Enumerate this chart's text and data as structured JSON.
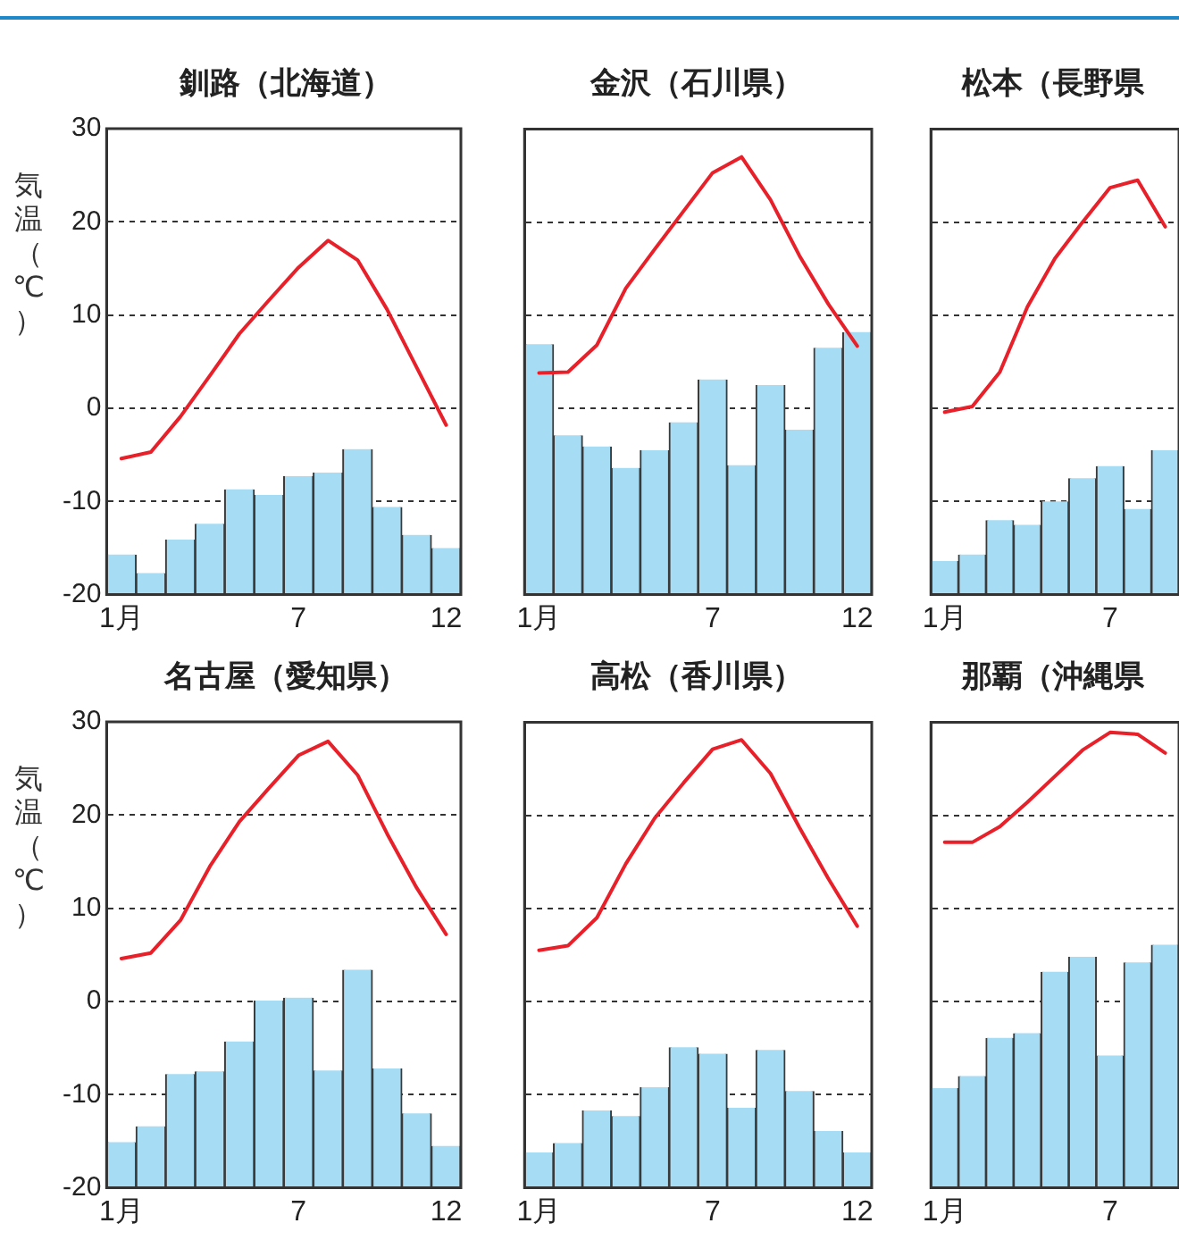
{
  "chart_data": [
    {
      "type": "bar",
      "title": "釧路（北海道）",
      "ylabel": "気温（℃）",
      "categories": [
        "1月",
        null,
        null,
        null,
        null,
        null,
        "7",
        null,
        null,
        null,
        null,
        "12"
      ],
      "ylim": [
        -20,
        30
      ],
      "yticks": [
        -20,
        -10,
        0,
        10,
        20,
        30
      ],
      "grid": "y",
      "series": [
        {
          "type": "bar",
          "color": "#a6dcf4",
          "base": [
            -20,
            -20,
            -20,
            -20,
            -20,
            -20,
            -20,
            -20,
            -20,
            -20,
            -20,
            -20
          ],
          "values": [
            4.3,
            2.3,
            5.9,
            7.6,
            11.3,
            10.7,
            12.7,
            13.1,
            15.6,
            9.4,
            6.4,
            5.0
          ]
        },
        {
          "type": "line",
          "color": "#e8202a",
          "values": [
            -5.4,
            -4.7,
            -0.9,
            3.5,
            8.0,
            11.6,
            15.1,
            18.0,
            15.9,
            10.6,
            4.4,
            -1.8
          ]
        }
      ]
    },
    {
      "type": "bar",
      "title": "金沢（石川県）",
      "categories": [
        "1月",
        null,
        null,
        null,
        null,
        null,
        "7",
        null,
        null,
        null,
        null,
        "12"
      ],
      "ylim": [
        -20,
        30
      ],
      "yticks": [
        -20,
        -10,
        0,
        10,
        20,
        30
      ],
      "grid": "y",
      "tick_labels": "x",
      "series": [
        {
          "type": "bar",
          "color": "#a6dcf4",
          "base": [
            -20,
            -20,
            -20,
            -20,
            -20,
            -20,
            -20,
            -20,
            -20,
            -20,
            -20,
            -20
          ],
          "values": [
            26.9,
            17.1,
            15.9,
            13.6,
            15.5,
            18.5,
            23.1,
            13.9,
            22.5,
            17.7,
            26.5,
            28.2
          ]
        },
        {
          "type": "line",
          "color": "#e8202a",
          "values": [
            3.8,
            3.9,
            6.8,
            12.9,
            17.1,
            21.2,
            25.3,
            27.0,
            22.4,
            16.4,
            11.2,
            6.7
          ]
        }
      ]
    },
    {
      "type": "bar",
      "title": "松本（長野県",
      "categories": [
        "1月",
        null,
        null,
        null,
        null,
        null,
        "7",
        null,
        null
      ],
      "ylim": [
        -20,
        30
      ],
      "yticks": [
        -20,
        -10,
        0,
        10,
        20,
        30
      ],
      "grid": "y",
      "tick_labels": "x",
      "series": [
        {
          "type": "bar",
          "color": "#a6dcf4",
          "base": [
            -20,
            -20,
            -20,
            -20,
            -20,
            -20,
            -20,
            -20,
            -20
          ],
          "values": [
            3.6,
            4.3,
            8.0,
            7.5,
            10.0,
            12.5,
            13.8,
            9.2,
            15.5
          ]
        },
        {
          "type": "line",
          "color": "#e8202a",
          "values": [
            -0.4,
            0.2,
            3.9,
            10.9,
            16.1,
            20.0,
            23.7,
            24.5,
            19.5
          ]
        }
      ]
    },
    {
      "type": "bar",
      "title": "名古屋（愛知県）",
      "ylabel": "気温（℃）",
      "categories": [
        "1月",
        null,
        null,
        null,
        null,
        null,
        "7",
        null,
        null,
        null,
        null,
        "12"
      ],
      "ylim": [
        -20,
        30
      ],
      "yticks": [
        -20,
        -10,
        0,
        10,
        20,
        30
      ],
      "grid": "y",
      "series": [
        {
          "type": "bar",
          "color": "#a6dcf4",
          "base": [
            -20,
            -20,
            -20,
            -20,
            -20,
            -20,
            -20,
            -20,
            -20,
            -20,
            -20,
            -20
          ],
          "values": [
            4.9,
            6.6,
            12.2,
            12.5,
            15.7,
            20.1,
            20.4,
            12.6,
            23.4,
            12.8,
            8.0,
            4.5
          ]
        },
        {
          "type": "line",
          "color": "#e8202a",
          "values": [
            4.6,
            5.2,
            8.7,
            14.5,
            19.3,
            22.9,
            26.4,
            27.9,
            24.3,
            18.0,
            12.2,
            7.2
          ]
        }
      ]
    },
    {
      "type": "bar",
      "title": "高松（香川県）",
      "categories": [
        "1月",
        null,
        null,
        null,
        null,
        null,
        "7",
        null,
        null,
        null,
        null,
        "12"
      ],
      "ylim": [
        -20,
        30
      ],
      "yticks": [
        -20,
        -10,
        0,
        10,
        20,
        30
      ],
      "grid": "y",
      "tick_labels": "x",
      "series": [
        {
          "type": "bar",
          "color": "#a6dcf4",
          "base": [
            -20,
            -20,
            -20,
            -20,
            -20,
            -20,
            -20,
            -20,
            -20,
            -20,
            -20,
            -20
          ],
          "values": [
            3.8,
            4.8,
            8.3,
            7.7,
            10.8,
            15.1,
            14.4,
            8.6,
            14.8,
            10.4,
            6.1,
            3.8
          ]
        },
        {
          "type": "line",
          "color": "#e8202a",
          "values": [
            5.5,
            6.0,
            9.0,
            14.8,
            19.7,
            23.5,
            27.1,
            28.1,
            24.5,
            18.7,
            13.2,
            8.1
          ]
        }
      ]
    },
    {
      "type": "bar",
      "title": "那覇（沖縄県",
      "categories": [
        "1月",
        null,
        null,
        null,
        null,
        null,
        "7",
        null,
        null
      ],
      "ylim": [
        -20,
        30
      ],
      "yticks": [
        -20,
        -10,
        0,
        10,
        20,
        30
      ],
      "grid": "y",
      "tick_labels": "x",
      "series": [
        {
          "type": "bar",
          "color": "#a6dcf4",
          "base": [
            -20,
            -20,
            -20,
            -20,
            -20,
            -20,
            -20,
            -20,
            -20
          ],
          "values": [
            10.7,
            12.0,
            16.1,
            16.6,
            23.2,
            24.8,
            14.2,
            24.2,
            26.1
          ]
        },
        {
          "type": "line",
          "color": "#e8202a",
          "values": [
            17.1,
            17.1,
            18.8,
            21.4,
            24.2,
            27.0,
            28.9,
            28.7,
            26.7
          ]
        }
      ]
    }
  ]
}
